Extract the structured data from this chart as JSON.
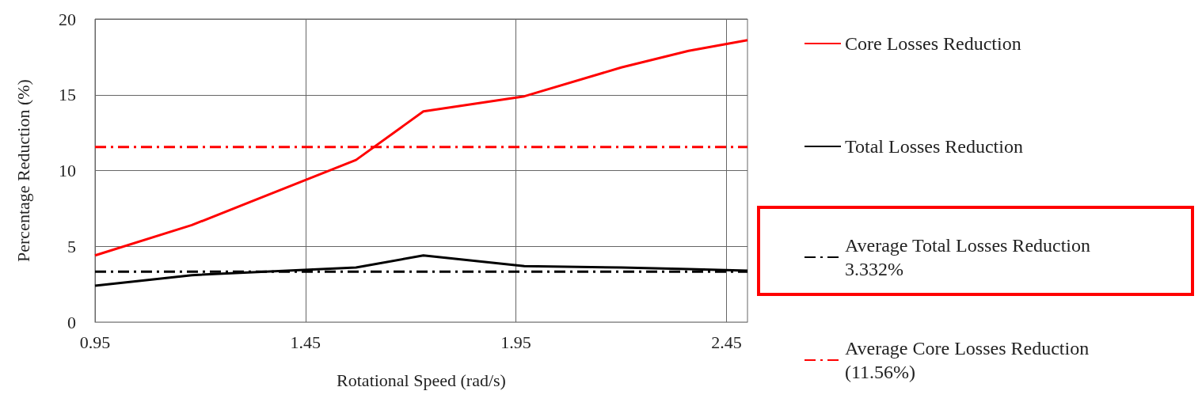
{
  "chart_data": {
    "type": "line",
    "xlabel": "Rotational Speed (rad/s)",
    "ylabel": "Percentage Reduction (%)",
    "xlim": [
      0.95,
      2.5
    ],
    "xticks": [
      0.95,
      1.45,
      1.95,
      2.45
    ],
    "ylim": [
      0,
      20
    ],
    "yticks": [
      0,
      5,
      10,
      15,
      20
    ],
    "grid": true,
    "legend": "right",
    "marker": "none",
    "series": [
      {
        "name": "Core Losses Reduction",
        "color": "#ff0000",
        "line_style": "solid",
        "x": [
          0.95,
          1.18,
          1.57,
          1.73,
          1.97,
          2.2,
          2.36,
          2.5
        ],
        "values": [
          4.4,
          6.4,
          10.7,
          13.9,
          14.9,
          16.8,
          17.9,
          18.6
        ]
      },
      {
        "name": "Total Losses Reduction",
        "color": "#000000",
        "line_style": "solid",
        "x": [
          0.95,
          1.18,
          1.57,
          1.73,
          1.97,
          2.2,
          2.36,
          2.5
        ],
        "values": [
          2.4,
          3.1,
          3.6,
          4.4,
          3.7,
          3.6,
          3.5,
          3.4
        ]
      },
      {
        "name": "Average Total Losses Reduction\n3.332%",
        "color": "#000000",
        "line_style": "dashed",
        "x": [
          0.95,
          2.5
        ],
        "values": [
          3.332,
          3.332
        ]
      },
      {
        "name": "Average Core Losses Reduction\n(11.56%)",
        "color": "#ff0000",
        "line_style": "dashed",
        "x": [
          0.95,
          2.5
        ],
        "values": [
          11.56,
          11.56
        ]
      }
    ]
  }
}
